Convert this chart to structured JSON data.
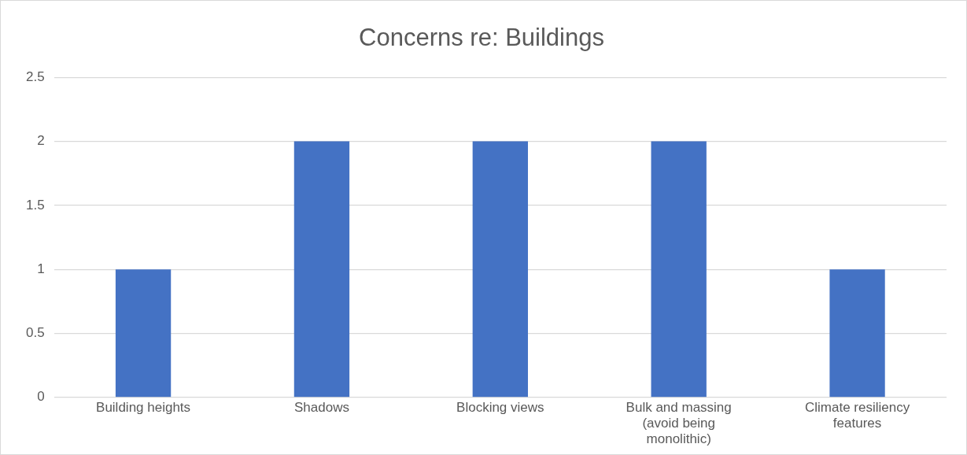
{
  "chart_data": {
    "type": "bar",
    "title": "Concerns re: Buildings",
    "categories": [
      "Building heights",
      "Shadows",
      "Blocking views",
      "Bulk and massing (avoid being monolithic)",
      "Climate resiliency features"
    ],
    "values": [
      1,
      2,
      2,
      2,
      1
    ],
    "color": "#4472c4",
    "ylim": [
      0,
      2.5
    ],
    "yticks": [
      0,
      0.5,
      1,
      1.5,
      2,
      2.5
    ],
    "grid": "y",
    "legend": false
  }
}
